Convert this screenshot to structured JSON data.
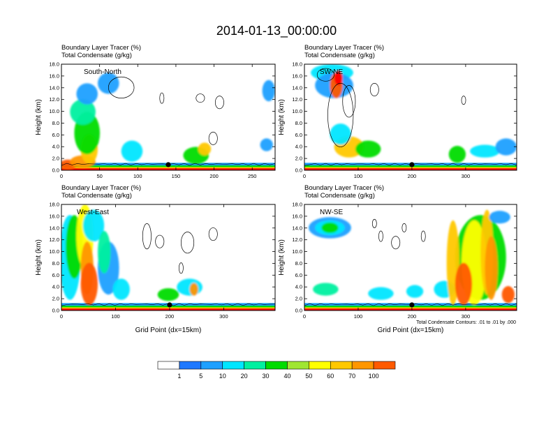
{
  "title": "2014-01-13_00:00:00",
  "colors": {
    "levels": [
      "#ffffff",
      "#1e78ff",
      "#1ea0ff",
      "#00e6ff",
      "#00f0a0",
      "#00dc00",
      "#a0e632",
      "#ffff00",
      "#ffc800",
      "#ff9600",
      "#ff5a00",
      "#ff0000"
    ],
    "marker": "#000000"
  },
  "colorbar": {
    "labels": [
      "1",
      "5",
      "10",
      "20",
      "30",
      "40",
      "50",
      "60",
      "70",
      "100"
    ]
  },
  "contour_note": "Total Condensate Contours: .01 to .01 by .000",
  "chart_data": [
    {
      "type": "heatmap",
      "panel_label": "South-North",
      "subtitle_line1": "Boundary Layer Tracer   (%)",
      "subtitle_line2": "Total Condensate   (g/kg)",
      "ylabel": "Height (km)",
      "xlabel": "",
      "ylim": [
        0,
        18
      ],
      "xlim": [
        0,
        280
      ],
      "yticks": [
        "0.0",
        "2.0",
        "4.0",
        "6.0",
        "8.0",
        "10.0",
        "12.0",
        "14.0",
        "16.0",
        "18.0"
      ],
      "xticks": [
        "0",
        "50",
        "100",
        "150",
        "200",
        "250"
      ],
      "xtick_values": [
        0,
        50,
        100,
        150,
        200,
        250
      ],
      "marker_x": 140
    },
    {
      "type": "heatmap",
      "panel_label": "SW-NE",
      "subtitle_line1": "Boundary Layer Tracer   (%)",
      "subtitle_line2": "Total Condensate   (g/kg)",
      "ylabel": "Height (km)",
      "xlabel": "",
      "ylim": [
        0,
        18
      ],
      "xlim": [
        0,
        395
      ],
      "yticks": [
        "0.0",
        "2.0",
        "4.0",
        "6.0",
        "8.0",
        "10.0",
        "12.0",
        "14.0",
        "16.0",
        "18.0"
      ],
      "xticks": [
        "0",
        "100",
        "200",
        "300"
      ],
      "xtick_values": [
        0,
        100,
        200,
        300
      ],
      "marker_x": 200
    },
    {
      "type": "heatmap",
      "panel_label": "West-East",
      "subtitle_line1": "Boundary Layer Tracer   (%)",
      "subtitle_line2": "Total Condensate   (g/kg)",
      "ylabel": "Height (km)",
      "xlabel": "Grid Point (dx=15km)",
      "ylim": [
        0,
        18
      ],
      "xlim": [
        0,
        395
      ],
      "yticks": [
        "0.0",
        "2.0",
        "4.0",
        "6.0",
        "8.0",
        "10.0",
        "12.0",
        "14.0",
        "16.0",
        "18.0"
      ],
      "xticks": [
        "0",
        "100",
        "200",
        "300"
      ],
      "xtick_values": [
        0,
        100,
        200,
        300
      ],
      "marker_x": 200
    },
    {
      "type": "heatmap",
      "panel_label": "NW-SE",
      "subtitle_line1": "Boundary Layer Tracer   (%)",
      "subtitle_line2": "Total Condensate   (g/kg)",
      "ylabel": "Height (km)",
      "xlabel": "Grid Point (dx=15km)",
      "ylim": [
        0,
        18
      ],
      "xlim": [
        0,
        395
      ],
      "yticks": [
        "0.0",
        "2.0",
        "4.0",
        "6.0",
        "8.0",
        "10.0",
        "12.0",
        "14.0",
        "16.0",
        "18.0"
      ],
      "xticks": [
        "0",
        "100",
        "200",
        "300"
      ],
      "xtick_values": [
        0,
        100,
        200,
        300
      ],
      "marker_x": 200
    }
  ]
}
